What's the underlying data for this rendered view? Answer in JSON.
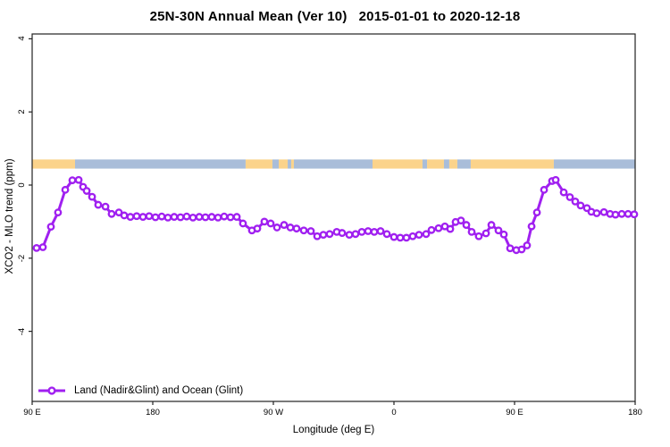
{
  "title": "25N-30N Annual Mean (Ver 10)   2015-01-01 to 2020-12-18",
  "chart_data": {
    "type": "line",
    "title": "25N-30N Annual Mean (Ver 10)   2015-01-01 to 2020-12-18",
    "xlabel": "Longitude (deg E)",
    "ylabel": "XCO2 - MLO trend (ppm)",
    "x_axis": {
      "description": "Longitude, starting at 90 E and wrapping eastward 450 degrees to 180",
      "span_deg": 450,
      "ticks": [
        {
          "pos": 0,
          "label": "90 E"
        },
        {
          "pos": 90,
          "label": "180"
        },
        {
          "pos": 180,
          "label": "90 W"
        },
        {
          "pos": 270,
          "label": "0"
        },
        {
          "pos": 360,
          "label": "90 E"
        },
        {
          "pos": 450,
          "label": "180"
        }
      ],
      "grid": false
    },
    "y_axis": {
      "ylim": [
        -5.9,
        4.1
      ],
      "ticks": [
        {
          "value": 4,
          "label": "4"
        },
        {
          "value": 2,
          "label": "2"
        },
        {
          "value": 0,
          "label": "0"
        },
        {
          "value": -2,
          "label": "-2"
        },
        {
          "value": -4,
          "label": "-4"
        }
      ],
      "grid": false
    },
    "legend": {
      "position": "bottom-left",
      "label": "Land (Nadir&Glint) and Ocean (Glint)"
    },
    "colors": {
      "series": "#A020F0",
      "land": "#FBD38B",
      "ocean": "#A9BDD9",
      "axis": "#222222"
    },
    "surface_band": {
      "description": "land/ocean strip drawn across the plot near y=0.5",
      "y_range": [
        0.45,
        0.7
      ],
      "segments": [
        {
          "from": 0,
          "to": 32,
          "surface": "land"
        },
        {
          "from": 32,
          "to": 159.3,
          "surface": "ocean"
        },
        {
          "from": 159.3,
          "to": 179.3,
          "surface": "land"
        },
        {
          "from": 179.3,
          "to": 184,
          "surface": "ocean"
        },
        {
          "from": 184,
          "to": 190.7,
          "surface": "land"
        },
        {
          "from": 190.7,
          "to": 193.3,
          "surface": "ocean"
        },
        {
          "from": 193.3,
          "to": 195.3,
          "surface": "land"
        },
        {
          "from": 195.3,
          "to": 254,
          "surface": "ocean"
        },
        {
          "from": 254,
          "to": 291.3,
          "surface": "land"
        },
        {
          "from": 291.3,
          "to": 294.7,
          "surface": "ocean"
        },
        {
          "from": 294.7,
          "to": 307.3,
          "surface": "land"
        },
        {
          "from": 307.3,
          "to": 311.3,
          "surface": "ocean"
        },
        {
          "from": 311.3,
          "to": 317.3,
          "surface": "land"
        },
        {
          "from": 317.3,
          "to": 327.3,
          "surface": "ocean"
        },
        {
          "from": 327.3,
          "to": 389.3,
          "surface": "land"
        },
        {
          "from": 389.3,
          "to": 450,
          "surface": "ocean"
        }
      ]
    },
    "series": [
      {
        "name": "Land (Nadir&Glint) and Ocean (Glint)",
        "marker": "open-circle",
        "points": [
          [
            3.3,
            -1.72
          ],
          [
            8,
            -1.7
          ],
          [
            14,
            -1.14
          ],
          [
            19.3,
            -0.75
          ],
          [
            24.7,
            -0.13
          ],
          [
            30,
            0.13
          ],
          [
            34.7,
            0.14
          ],
          [
            38,
            -0.05
          ],
          [
            40.7,
            -0.16
          ],
          [
            44.7,
            -0.32
          ],
          [
            49.3,
            -0.54
          ],
          [
            54.7,
            -0.59
          ],
          [
            59.3,
            -0.79
          ],
          [
            64.7,
            -0.75
          ],
          [
            68.7,
            -0.83
          ],
          [
            73.3,
            -0.87
          ],
          [
            78,
            -0.85
          ],
          [
            82.7,
            -0.87
          ],
          [
            87.3,
            -0.85
          ],
          [
            92,
            -0.88
          ],
          [
            96.7,
            -0.86
          ],
          [
            101.3,
            -0.89
          ],
          [
            106,
            -0.87
          ],
          [
            110.7,
            -0.88
          ],
          [
            115.3,
            -0.86
          ],
          [
            120,
            -0.89
          ],
          [
            124.7,
            -0.87
          ],
          [
            129.3,
            -0.88
          ],
          [
            134,
            -0.87
          ],
          [
            138.7,
            -0.89
          ],
          [
            143.3,
            -0.86
          ],
          [
            148,
            -0.88
          ],
          [
            152.7,
            -0.87
          ],
          [
            157.3,
            -1.05
          ],
          [
            164,
            -1.24
          ],
          [
            168,
            -1.19
          ],
          [
            173.3,
            -1.0
          ],
          [
            178,
            -1.05
          ],
          [
            182.7,
            -1.16
          ],
          [
            188,
            -1.09
          ],
          [
            192.7,
            -1.16
          ],
          [
            197.3,
            -1.19
          ],
          [
            202.7,
            -1.24
          ],
          [
            208,
            -1.26
          ],
          [
            212.7,
            -1.4
          ],
          [
            217.3,
            -1.36
          ],
          [
            222,
            -1.34
          ],
          [
            227.3,
            -1.28
          ],
          [
            231.3,
            -1.31
          ],
          [
            236.7,
            -1.36
          ],
          [
            241.3,
            -1.34
          ],
          [
            246,
            -1.28
          ],
          [
            250.7,
            -1.26
          ],
          [
            255.3,
            -1.28
          ],
          [
            260,
            -1.26
          ],
          [
            264.7,
            -1.34
          ],
          [
            270,
            -1.42
          ],
          [
            274.7,
            -1.44
          ],
          [
            279.3,
            -1.44
          ],
          [
            284,
            -1.4
          ],
          [
            288.7,
            -1.36
          ],
          [
            294,
            -1.34
          ],
          [
            298,
            -1.23
          ],
          [
            303.3,
            -1.18
          ],
          [
            308,
            -1.13
          ],
          [
            312,
            -1.2
          ],
          [
            316,
            -1.01
          ],
          [
            320,
            -0.97
          ],
          [
            324,
            -1.09
          ],
          [
            328,
            -1.28
          ],
          [
            333.3,
            -1.4
          ],
          [
            338.7,
            -1.32
          ],
          [
            342.7,
            -1.09
          ],
          [
            348,
            -1.24
          ],
          [
            352,
            -1.35
          ],
          [
            356.7,
            -1.73
          ],
          [
            361.3,
            -1.78
          ],
          [
            365.3,
            -1.76
          ],
          [
            369.3,
            -1.65
          ],
          [
            372.7,
            -1.13
          ],
          [
            376.7,
            -0.75
          ],
          [
            382,
            -0.13
          ],
          [
            388,
            0.11
          ],
          [
            390.7,
            0.14
          ],
          [
            396.7,
            -0.2
          ],
          [
            401.3,
            -0.33
          ],
          [
            405.3,
            -0.45
          ],
          [
            409.3,
            -0.56
          ],
          [
            414,
            -0.63
          ],
          [
            417.3,
            -0.73
          ],
          [
            421.3,
            -0.77
          ],
          [
            426.7,
            -0.74
          ],
          [
            431.3,
            -0.79
          ],
          [
            435.3,
            -0.81
          ],
          [
            440,
            -0.79
          ],
          [
            444.7,
            -0.79
          ],
          [
            449.3,
            -0.8
          ]
        ]
      }
    ]
  }
}
